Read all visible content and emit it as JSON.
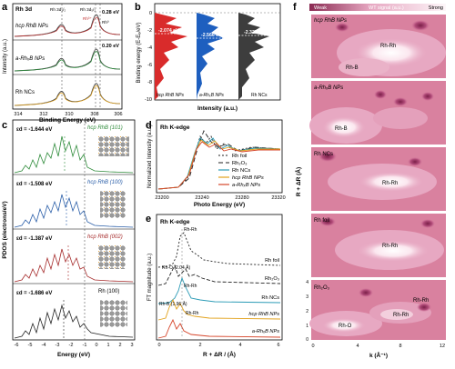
{
  "panels": {
    "a": {
      "letter": "a",
      "label": "Rh 3d",
      "xlabel": "Binding Energy (eV)",
      "ylabel": "Intensity (a.u.)",
      "xticks": [
        "314",
        "312",
        "310",
        "308",
        "306"
      ],
      "rows": [
        {
          "name": "hcp RhB NPs",
          "value": "0.28 eV"
        },
        {
          "name": "a-RhₓB NPs",
          "value": "0.20 eV"
        },
        {
          "name": "Rh NCs",
          "value": ""
        }
      ],
      "peak_labels": {
        "p32": "Rh 3d₃/₂",
        "p52": "Rh 3d₅/₂",
        "rh3": "Rh³⁺",
        "rh0": "Rh⁰"
      }
    },
    "b": {
      "letter": "b",
      "ylabel": "Binding energy (E-Eₑ/eV)",
      "xlabel": "Intensity (a.u.)",
      "yticks": [
        "0",
        "-2",
        "-4",
        "-6",
        "-8",
        "-10"
      ],
      "columns": [
        {
          "name": "hcp RhB NPs",
          "value": "-2.074 eV",
          "color": "#d92b2b"
        },
        {
          "name": "a-RhₓB NPs",
          "value": "-2.566 eV",
          "color": "#1e5fbf"
        },
        {
          "name": "Rh NCs",
          "value": "-2.325 eV",
          "color": "#3d3d3d"
        }
      ]
    },
    "c": {
      "letter": "c",
      "ylabel": "PDOS (electrons/eV)",
      "xlabel": "Energy (eV)",
      "xticks": [
        "-6",
        "-5",
        "-4",
        "-3",
        "-2",
        "-1",
        "0",
        "1",
        "2",
        "3"
      ],
      "rows": [
        {
          "ed": "εd = -1.644 eV",
          "name": "hcp RhB (101)",
          "color": "#2e8b3a"
        },
        {
          "ed": "εd = -1.508 eV",
          "name": "hcp RhB (100)",
          "color": "#2a5ea8"
        },
        {
          "ed": "εd = -1.387 eV",
          "name": "hcp RhB (002)",
          "color": "#a52a2a"
        },
        {
          "ed": "εd = -1.686 eV",
          "name": "Rh (100)",
          "color": "#222222"
        }
      ]
    },
    "d": {
      "letter": "d",
      "label": "Rh K-edge",
      "xlabel": "Photo Energy (eV)",
      "ylabel": "Normalized Intensity (a.u.)",
      "xticks": [
        "23200",
        "23240",
        "23280",
        "23320"
      ],
      "legend": [
        {
          "name": "Rh foil",
          "color": "#222222",
          "dash": "2,2"
        },
        {
          "name": "Rh₂O₃",
          "color": "#222222",
          "dash": "5,3"
        },
        {
          "name": "Rh NCs",
          "color": "#2b9bb6",
          "dash": ""
        },
        {
          "name": "hcp RhB NPs",
          "color": "#e2a21c",
          "dash": ""
        },
        {
          "name": "a-RhₓB NPs",
          "color": "#d6452a",
          "dash": ""
        }
      ]
    },
    "e": {
      "letter": "e",
      "label": "Rh K-edge",
      "xlabel": "R + ΔR / (Å)",
      "ylabel": "FT magnitude (a.u.)",
      "xticks": [
        "0",
        "2",
        "4",
        "6"
      ],
      "annotations": [
        "Rh-Rh",
        "Rh-O (2.04 Å)",
        "Rh-Rh",
        "Rh-B (1.96 Å)",
        "Rh-Rh"
      ],
      "curves": [
        "Rh foil",
        "Rh₂O₃",
        "Rh NCs",
        "hcp RhB NPs",
        "a-RhₓB NPs"
      ]
    },
    "f": {
      "letter": "f",
      "colorbar": {
        "label": "WT signal (a.u.)",
        "weak": "Weak",
        "strong": "Strong"
      },
      "ylabel": "R + ΔR (Å)",
      "xlabel": "k (Å⁻¹)",
      "xticks": [
        "0",
        "4",
        "8",
        "12"
      ],
      "yticks": [
        "4",
        "3",
        "2",
        "1",
        "0"
      ],
      "maps": [
        {
          "name": "hcp RhB NPs",
          "labels": [
            "Rh-Rh",
            "Rh-B"
          ]
        },
        {
          "name": "a-RhₓB NPs",
          "labels": [
            "Rh-B"
          ]
        },
        {
          "name": "Rh NCs",
          "labels": [
            "Rh-Rh"
          ]
        },
        {
          "name": "Rh foil",
          "labels": [
            "Rh-Rh"
          ]
        },
        {
          "name": "Rh₂O₃",
          "labels": [
            "Rh-Rh",
            "Rh-Rh",
            "Rh-O"
          ]
        }
      ]
    }
  }
}
